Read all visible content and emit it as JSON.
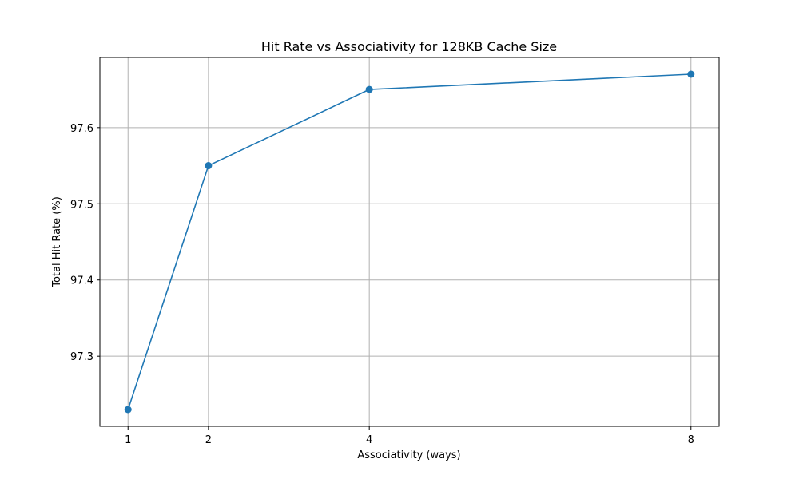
{
  "chart_data": {
    "type": "line",
    "title": "Hit Rate vs Associativity for 128KB Cache Size",
    "xlabel": "Associativity (ways)",
    "ylabel": "Total Hit Rate (%)",
    "x": [
      1,
      2,
      4,
      8
    ],
    "x_ticks": [
      "1",
      "2",
      "4",
      "8"
    ],
    "y_ticks": [
      97.3,
      97.4,
      97.5,
      97.6
    ],
    "y_tick_labels": [
      "97.3",
      "97.4",
      "97.5",
      "97.6"
    ],
    "xlim": [
      0.65,
      8.35
    ],
    "ylim": [
      97.208,
      97.692
    ],
    "grid": true,
    "series": [
      {
        "values": [
          97.23,
          97.55,
          97.65,
          97.67
        ],
        "color": "#1f77b4",
        "marker": "circle"
      }
    ]
  }
}
